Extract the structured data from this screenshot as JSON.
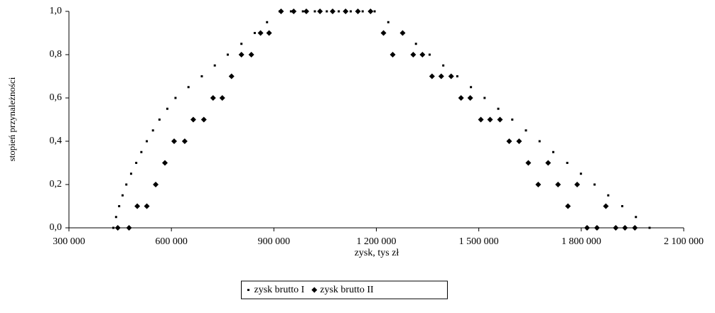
{
  "chart_data": {
    "type": "scatter",
    "x_label": "zysk,  tys zł",
    "y_label": "stopień przynależności",
    "xlim": [
      300000,
      2100000
    ],
    "ylim": [
      0,
      1
    ],
    "xticks": [
      {
        "value": 300000,
        "label": "300 000"
      },
      {
        "value": 600000,
        "label": "600 000"
      },
      {
        "value": 900000,
        "label": "900 000"
      },
      {
        "value": 1200000,
        "label": "1 200 000"
      },
      {
        "value": 1500000,
        "label": "1 500 000"
      },
      {
        "value": 1800000,
        "label": "1 800 000"
      },
      {
        "value": 2100000,
        "label": "2 100 000"
      }
    ],
    "yticks": [
      {
        "value": 0,
        "label": "0,0"
      },
      {
        "value": 0.2,
        "label": "0,2"
      },
      {
        "value": 0.4,
        "label": "0,4"
      },
      {
        "value": 0.6,
        "label": "0,6"
      },
      {
        "value": 0.8,
        "label": "0,8"
      },
      {
        "value": 1,
        "label": "1,0"
      }
    ],
    "grid": false,
    "legend": "bottom",
    "series": [
      {
        "name": "zysk brutto I",
        "color": "#000000",
        "marker": "square",
        "x": [
          430000,
          438000,
          447000,
          457000,
          468000,
          482000,
          497000,
          512000,
          528000,
          546000,
          565000,
          588000,
          612000,
          650000,
          689000,
          727000,
          765000,
          805000,
          844000,
          880000,
          917000,
          950000,
          985000,
          1020000,
          1055000,
          1090000,
          1125000,
          1160000,
          1195000,
          1235000,
          1276000,
          1316000,
          1356000,
          1396000,
          1437000,
          1477000,
          1517000,
          1557000,
          1598000,
          1638000,
          1678000,
          1718000,
          1759000,
          1799000,
          1839000,
          1879000,
          1920000,
          1960000,
          2000000
        ],
        "values": [
          0,
          0.05,
          0.1,
          0.15,
          0.2,
          0.25,
          0.3,
          0.35,
          0.4,
          0.45,
          0.5,
          0.55,
          0.6,
          0.65,
          0.7,
          0.75,
          0.8,
          0.85,
          0.9,
          0.95,
          1,
          1,
          1,
          1,
          1,
          1,
          1,
          1,
          1,
          0.95,
          0.9,
          0.85,
          0.8,
          0.75,
          0.7,
          0.65,
          0.6,
          0.55,
          0.5,
          0.45,
          0.4,
          0.35,
          0.3,
          0.25,
          0.2,
          0.15,
          0.1,
          0.05,
          0
        ]
      },
      {
        "name": "zysk brutto II",
        "color": "#000000",
        "marker": "diamond",
        "x": [
          443000,
          476000,
          500000,
          528000,
          554000,
          581000,
          608000,
          639000,
          664000,
          695000,
          722000,
          749000,
          776000,
          805000,
          834000,
          861000,
          886000,
          921000,
          958000,
          995000,
          1035000,
          1072000,
          1110000,
          1146000,
          1183000,
          1221000,
          1248000,
          1277000,
          1308000,
          1335000,
          1363000,
          1390000,
          1419000,
          1448000,
          1475000,
          1506000,
          1533000,
          1562000,
          1589000,
          1618000,
          1645000,
          1674000,
          1703000,
          1732000,
          1761000,
          1788000,
          1817000,
          1846000,
          1872000,
          1901000,
          1928000,
          1957000
        ],
        "values": [
          0,
          0,
          0.1,
          0.1,
          0.2,
          0.3,
          0.4,
          0.4,
          0.5,
          0.5,
          0.6,
          0.6,
          0.7,
          0.8,
          0.8,
          0.9,
          0.9,
          1,
          1,
          1,
          1,
          1,
          1,
          1,
          1,
          0.9,
          0.8,
          0.9,
          0.8,
          0.8,
          0.7,
          0.7,
          0.7,
          0.6,
          0.6,
          0.5,
          0.5,
          0.5,
          0.4,
          0.4,
          0.3,
          0.2,
          0.3,
          0.2,
          0.1,
          0.2,
          0,
          0,
          0.1,
          0,
          0,
          0
        ]
      }
    ]
  }
}
